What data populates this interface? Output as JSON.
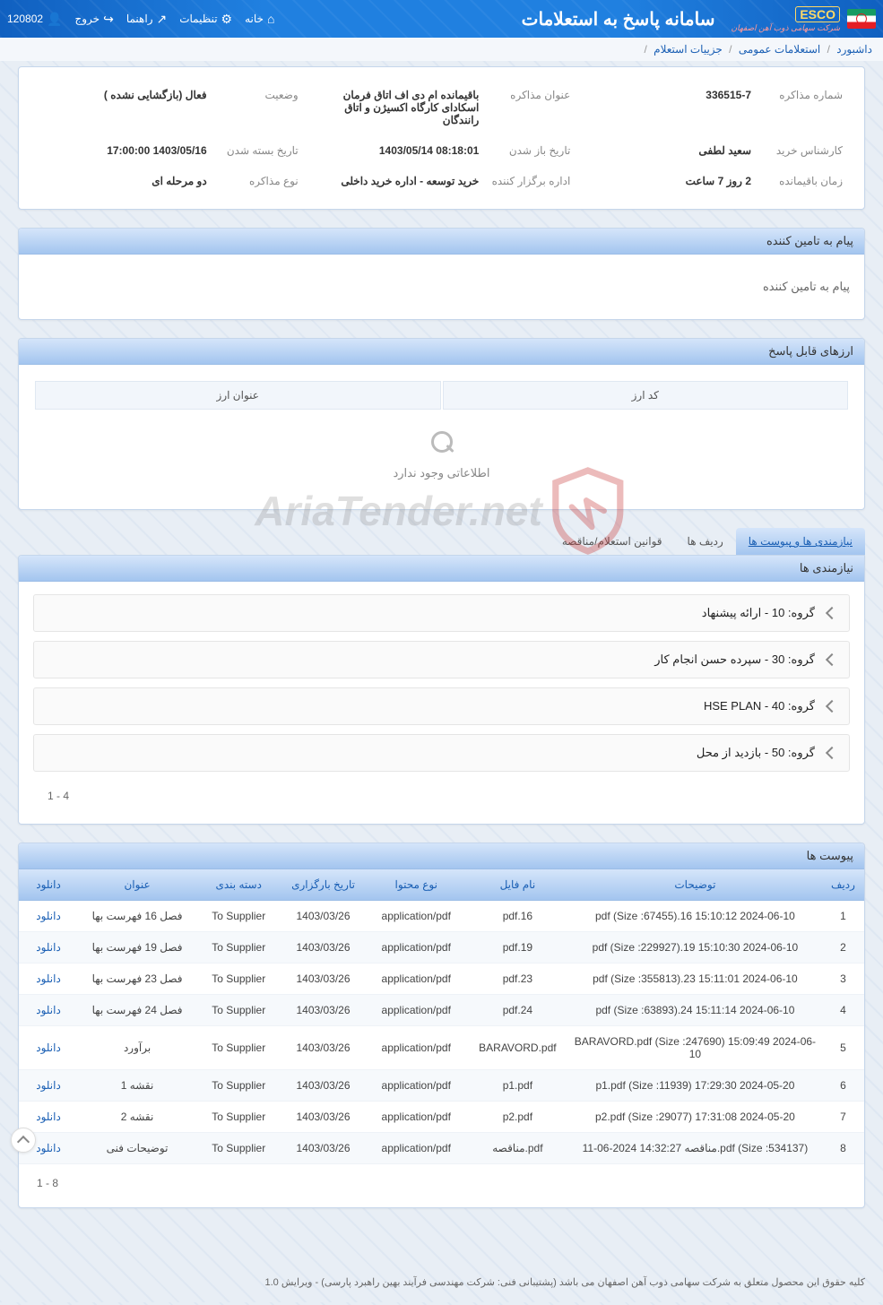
{
  "topbar": {
    "app_title": "سامانه پاسخ به استعلامات",
    "esco_label": "ESCO",
    "esco_sub": "شرکت سهامی ذوب آهن اصفهان",
    "nav": {
      "home": "خانه",
      "settings": "تنظیمات",
      "help": "راهنما",
      "logout": "خروج",
      "user_code": "120802"
    }
  },
  "breadcrumb": {
    "dashboard": "داشبورد",
    "public_inquiries": "استعلامات عمومی",
    "inquiry_details": "جزییات استعلام",
    "sep": "/"
  },
  "details": {
    "labels": {
      "neg_number": "شماره مذاکره",
      "neg_title": "عنوان مذاکره",
      "status": "وضعیت",
      "buyer": "کارشناس خرید",
      "open_date": "تاریخ باز شدن",
      "close_date": "تاریخ بسته شدن",
      "remaining": "زمان باقیمانده",
      "organizer": "اداره برگزار کننده",
      "neg_type": "نوع مذاکره"
    },
    "values": {
      "neg_number": "336515-7",
      "neg_title": "باقیمانده ام دی اف اتاق فرمان اسکادای کارگاه اکسیژن و اتاق رانندگان",
      "status": "فعال (بازگشایی نشده )",
      "buyer": "سعید لطفی",
      "open_date": "08:18:01 1403/05/14",
      "close_date": "1403/05/16 17:00:00",
      "remaining": "2 روز 7 ساعت",
      "organizer": "خرید توسعه - اداره خرید داخلی",
      "neg_type": "دو مرحله ای"
    }
  },
  "supplier_msg": {
    "header": "پیام به تامین کننده",
    "body": "پیام به تامین کننده"
  },
  "currencies": {
    "header": "ارزهای قابل پاسخ",
    "cols": {
      "code": "کد ارز",
      "title": "عنوان ارز"
    },
    "empty": "اطلاعاتی وجود ندارد"
  },
  "tabs": {
    "t1": "نیازمندی ها و پیوست ها",
    "t2": "ردیف ها",
    "t3": "قوانین استعلام/مناقصه"
  },
  "needs": {
    "header": "نیازمندی ها",
    "groups": [
      "گروه: 10 - ارائه پیشنهاد",
      "گروه: 30 - سپرده حسن انجام کار",
      "گروه: 40 - HSE PLAN",
      "گروه: 50 - بازدید از محل"
    ],
    "pager": "1 - 4"
  },
  "attachments": {
    "header": "پیوست ها",
    "cols": {
      "row": "ردیف",
      "desc": "توضیحات",
      "filename": "نام فایل",
      "content_type": "نوع محتوا",
      "upload_date": "تاریخ بارگزاری",
      "category": "دسته بندی",
      "title": "عنوان",
      "download": "دانلود"
    },
    "download_label": "دانلود",
    "rows": [
      {
        "row": "1",
        "desc": "pdf (Size :67455).16 15:10:12 2024-06-10",
        "file": "pdf.16",
        "ctype": "application/pdf",
        "date": "1403/03/26",
        "cat": "To Supplier",
        "title": "فصل 16 فهرست بها"
      },
      {
        "row": "2",
        "desc": "pdf (Size :229927).19 15:10:30 2024-06-10",
        "file": "pdf.19",
        "ctype": "application/pdf",
        "date": "1403/03/26",
        "cat": "To Supplier",
        "title": "فصل 19 فهرست بها"
      },
      {
        "row": "3",
        "desc": "pdf (Size :355813).23 15:11:01 2024-06-10",
        "file": "pdf.23",
        "ctype": "application/pdf",
        "date": "1403/03/26",
        "cat": "To Supplier",
        "title": "فصل 23 فهرست بها"
      },
      {
        "row": "4",
        "desc": "pdf (Size :63893).24 15:11:14 2024-06-10",
        "file": "pdf.24",
        "ctype": "application/pdf",
        "date": "1403/03/26",
        "cat": "To Supplier",
        "title": "فصل 24 فهرست بها"
      },
      {
        "row": "5",
        "desc": "BARAVORD.pdf (Size :247690) 15:09:49 2024-06-10",
        "file": "BARAVORD.pdf",
        "ctype": "application/pdf",
        "date": "1403/03/26",
        "cat": "To Supplier",
        "title": "برآورد"
      },
      {
        "row": "6",
        "desc": "p1.pdf (Size :11939) 17:29:30 2024-05-20",
        "file": "p1.pdf",
        "ctype": "application/pdf",
        "date": "1403/03/26",
        "cat": "To Supplier",
        "title": "نقشه 1"
      },
      {
        "row": "7",
        "desc": "p2.pdf (Size :29077) 17:31:08 2024-05-20",
        "file": "p2.pdf",
        "ctype": "application/pdf",
        "date": "1403/03/26",
        "cat": "To Supplier",
        "title": "نقشه 2"
      },
      {
        "row": "8",
        "desc": "pdf (Size :534137).مناقصه 14:32:27 2024-06-11",
        "file": "pdf.مناقصه",
        "ctype": "application/pdf",
        "date": "1403/03/26",
        "cat": "To Supplier",
        "title": "توضیحات فنی"
      }
    ],
    "pager": "1 - 8"
  },
  "watermark": {
    "text": "AriaTender.net"
  },
  "footer": {
    "text": "کلیه حقوق این محصول متعلق به شرکت سهامی ذوب آهن اصفهان می باشد (پشتیبانی فنی: شرکت مهندسی فرآیند بهین راهبرد پارسی) - ویرایش 1.0"
  },
  "colors": {
    "primary": "#1a5fb4",
    "header_grad_top": "#d5e5fa",
    "header_grad_bot": "#a3c5ef",
    "bg": "#e8eef5",
    "panel_bg": "#ffffff",
    "border": "#c5d6eb",
    "text": "#333333",
    "muted": "#888888"
  }
}
